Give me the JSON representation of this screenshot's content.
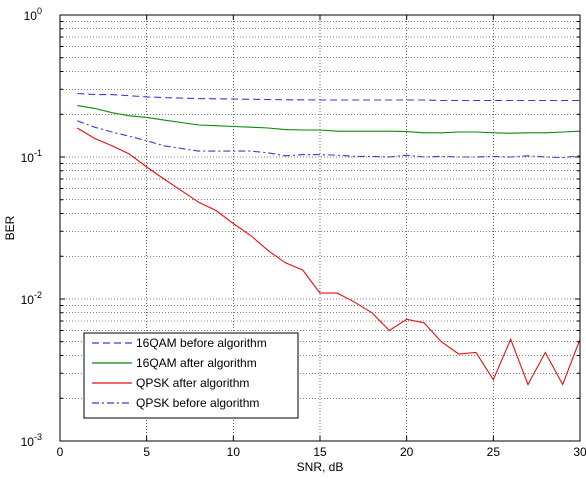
{
  "chart_data": {
    "type": "line",
    "xlabel": "SNR, dB",
    "ylabel": "BER",
    "xlim": [
      0,
      30
    ],
    "ylim": [
      0.001,
      1
    ],
    "yscale": "log",
    "grid": true,
    "legend_position": "bottom-left",
    "x_ticks": [
      {
        "value": 0,
        "label": "0"
      },
      {
        "value": 5,
        "label": "5"
      },
      {
        "value": 10,
        "label": "10"
      },
      {
        "value": 15,
        "label": "15"
      },
      {
        "value": 20,
        "label": "20"
      },
      {
        "value": 25,
        "label": "25"
      },
      {
        "value": 30,
        "label": "30"
      }
    ],
    "y_ticks": [
      {
        "value": 0.001,
        "base": "10",
        "exp": "-3"
      },
      {
        "value": 0.01,
        "base": "10",
        "exp": "-2"
      },
      {
        "value": 0.1,
        "base": "10",
        "exp": "-1"
      },
      {
        "value": 1,
        "base": "10",
        "exp": "0"
      }
    ],
    "series": [
      {
        "name": "16QAM before algorithm",
        "color": "#3b3bd8",
        "dash": "dashed",
        "x": [
          1,
          2,
          3,
          4,
          5,
          6,
          7,
          8,
          9,
          10,
          11,
          12,
          13,
          14,
          15,
          16,
          17,
          18,
          19,
          20,
          21,
          22,
          23,
          24,
          25,
          26,
          27,
          28,
          29,
          30
        ],
        "values": [
          0.28,
          0.275,
          0.275,
          0.27,
          0.265,
          0.262,
          0.26,
          0.258,
          0.257,
          0.256,
          0.255,
          0.254,
          0.253,
          0.253,
          0.252,
          0.252,
          0.252,
          0.252,
          0.252,
          0.252,
          0.252,
          0.25,
          0.25,
          0.25,
          0.25,
          0.25,
          0.25,
          0.25,
          0.25,
          0.25
        ]
      },
      {
        "name": "16QAM after algorithm",
        "color": "#0a8a0a",
        "dash": "solid",
        "x": [
          1,
          2,
          3,
          4,
          5,
          6,
          7,
          8,
          9,
          10,
          11,
          12,
          13,
          14,
          15,
          16,
          17,
          18,
          19,
          20,
          21,
          22,
          23,
          24,
          25,
          26,
          27,
          28,
          29,
          30
        ],
        "values": [
          0.23,
          0.22,
          0.205,
          0.195,
          0.19,
          0.182,
          0.175,
          0.168,
          0.166,
          0.164,
          0.162,
          0.16,
          0.156,
          0.155,
          0.155,
          0.152,
          0.152,
          0.152,
          0.152,
          0.151,
          0.148,
          0.148,
          0.15,
          0.15,
          0.148,
          0.147,
          0.148,
          0.148,
          0.15,
          0.152
        ]
      },
      {
        "name": "QPSK after algorithm",
        "color": "#e81010",
        "dash": "solid",
        "x": [
          1,
          2,
          3,
          4,
          5,
          6,
          7,
          8,
          9,
          10,
          11,
          12,
          13,
          14,
          15,
          16,
          17,
          18,
          19,
          20,
          21,
          22,
          23,
          24,
          25,
          26,
          27,
          28,
          29,
          30
        ],
        "values": [
          0.16,
          0.135,
          0.12,
          0.105,
          0.085,
          0.07,
          0.058,
          0.048,
          0.042,
          0.034,
          0.028,
          0.022,
          0.018,
          0.016,
          0.011,
          0.011,
          0.0095,
          0.008,
          0.006,
          0.0072,
          0.0068,
          0.005,
          0.0041,
          0.0042,
          0.0027,
          0.0052,
          0.0025,
          0.0042,
          0.0025,
          0.0052
        ]
      },
      {
        "name": "QPSK  before algorithm",
        "color": "#3b3bd8",
        "dash": "dashdot",
        "x": [
          1,
          2,
          3,
          4,
          5,
          6,
          7,
          8,
          9,
          10,
          11,
          12,
          13,
          14,
          15,
          16,
          17,
          18,
          19,
          20,
          21,
          22,
          23,
          24,
          25,
          26,
          27,
          28,
          29,
          30
        ],
        "values": [
          0.18,
          0.162,
          0.15,
          0.14,
          0.13,
          0.12,
          0.115,
          0.11,
          0.11,
          0.11,
          0.11,
          0.107,
          0.102,
          0.104,
          0.104,
          0.103,
          0.101,
          0.101,
          0.1,
          0.103,
          0.1,
          0.101,
          0.1,
          0.1,
          0.101,
          0.1,
          0.102,
          0.1,
          0.099,
          0.102
        ]
      }
    ]
  }
}
